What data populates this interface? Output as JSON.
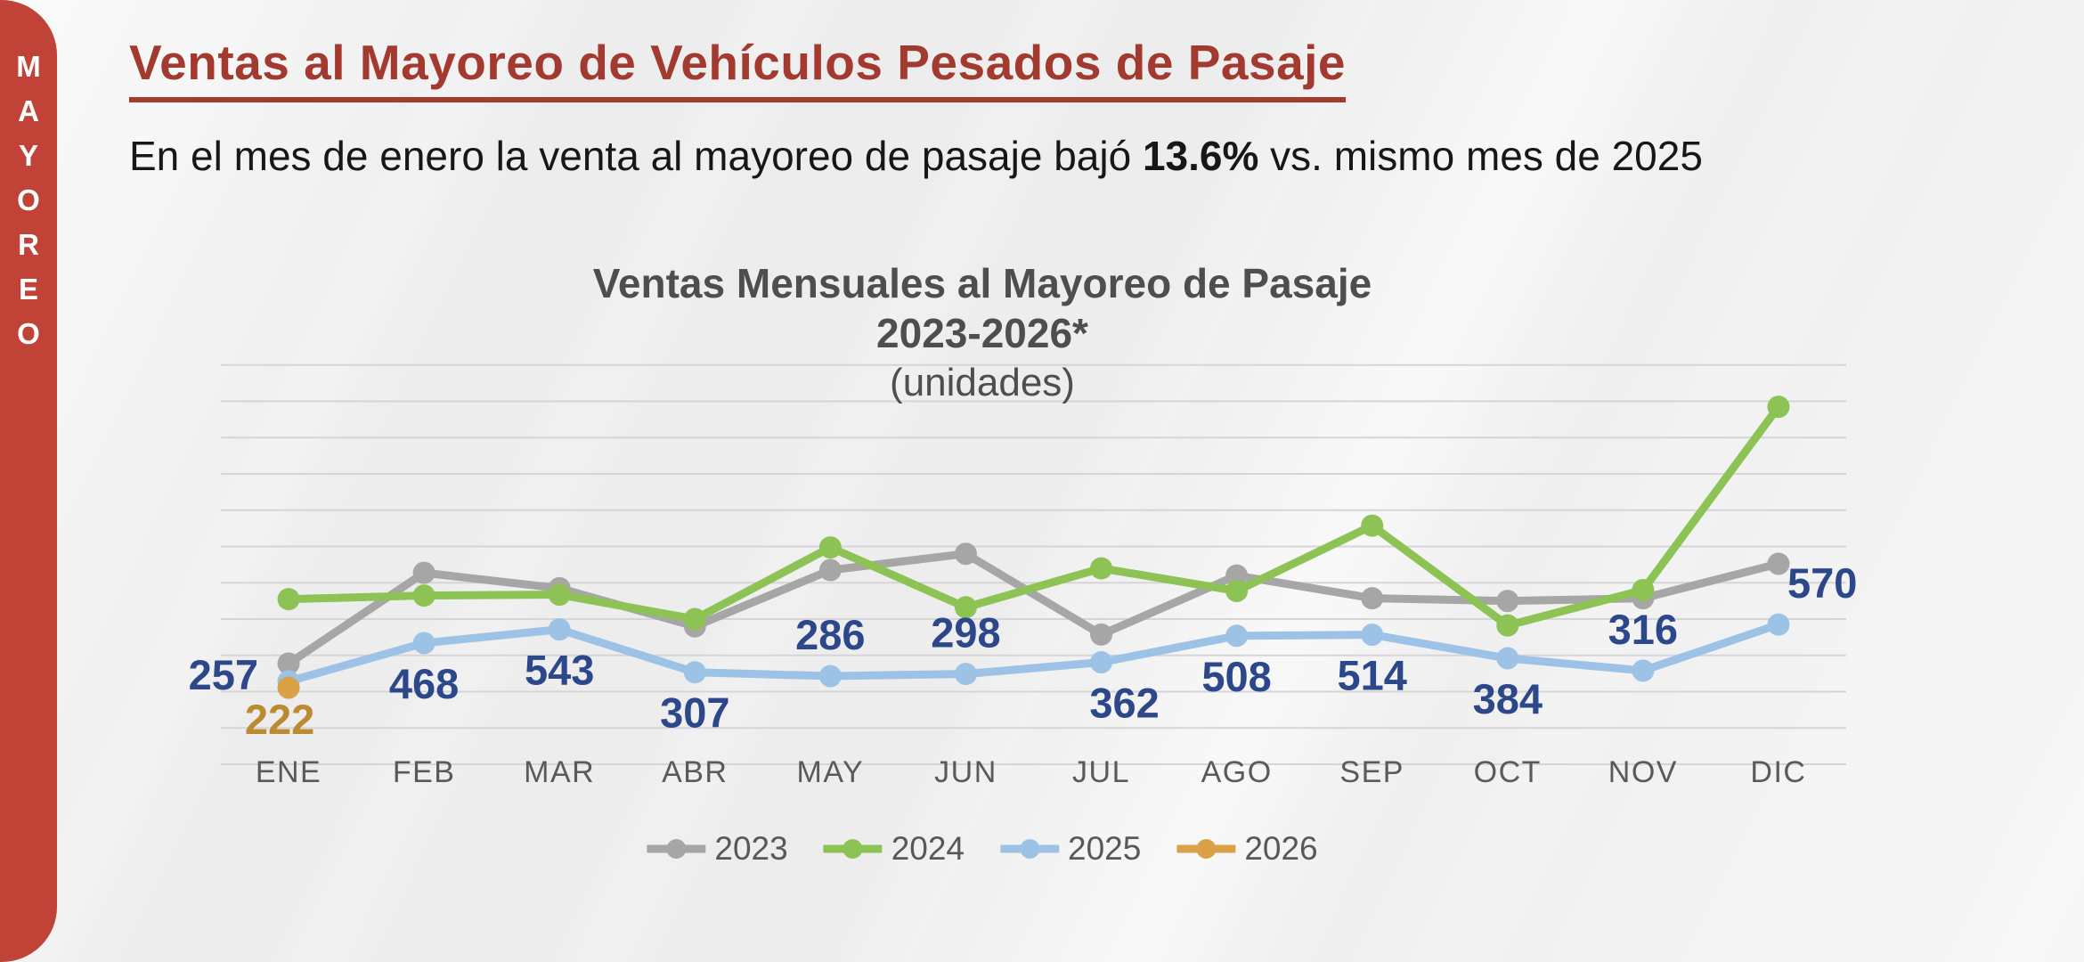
{
  "sidebar": {
    "vertical_text": "MAYOREO"
  },
  "header": {
    "title": "Ventas al Mayoreo de Vehículos Pesados de Pasaje",
    "subtitle_prefix": "En el mes de enero la venta al mayoreo de pasaje bajó ",
    "subtitle_bold": "13.6%",
    "subtitle_suffix": " vs. mismo mes de 2025"
  },
  "chart_data": {
    "type": "line",
    "title_lines": [
      "Ventas Mensuales al Mayoreo de Pasaje",
      "2023-2026*",
      "(unidades)"
    ],
    "categories": [
      "ENE",
      "FEB",
      "MAR",
      "ABR",
      "MAY",
      "JUN",
      "JUL",
      "AGO",
      "SEP",
      "OCT",
      "NOV",
      "DIC"
    ],
    "series": [
      {
        "name": "2023",
        "color": "#a6a6a6",
        "values": [
          355,
          855,
          770,
          560,
          870,
          960,
          515,
          840,
          715,
          700,
          715,
          905
        ],
        "show_labels": false
      },
      {
        "name": "2024",
        "color": "#8dc355",
        "values": [
          710,
          730,
          735,
          600,
          995,
          665,
          880,
          755,
          1115,
          565,
          760,
          1770
        ],
        "show_labels": false
      },
      {
        "name": "2025",
        "color": "#9cc3e6",
        "values": [
          257,
          468,
          543,
          307,
          286,
          298,
          362,
          508,
          514,
          384,
          316,
          570
        ],
        "show_labels": true,
        "label_color": "#2c488a",
        "label_placements": [
          "left",
          "below",
          "below",
          "below",
          "above",
          "above",
          "below-right",
          "below",
          "below",
          "below",
          "above",
          "above-right"
        ]
      },
      {
        "name": "2026",
        "color": "#daa147",
        "values": [
          222,
          null,
          null,
          null,
          null,
          null,
          null,
          null,
          null,
          null,
          null,
          null
        ],
        "show_labels": true,
        "label_color": "#bc8a31",
        "label_placements": [
          "below-far"
        ]
      }
    ],
    "ylim": [
      -200,
      2000
    ],
    "grid_step": 200,
    "grid": "horizontal",
    "legend_position": "bottom",
    "x_axis_label": "",
    "y_axis_label": ""
  }
}
